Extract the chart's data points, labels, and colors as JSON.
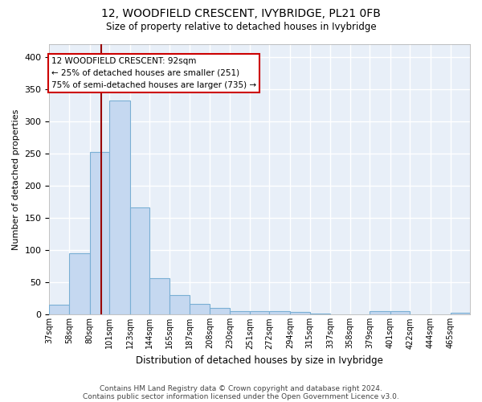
{
  "title": "12, WOODFIELD CRESCENT, IVYBRIDGE, PL21 0FB",
  "subtitle": "Size of property relative to detached houses in Ivybridge",
  "xlabel": "Distribution of detached houses by size in Ivybridge",
  "ylabel": "Number of detached properties",
  "bar_color": "#c5d8f0",
  "bar_edge_color": "#7aafd4",
  "background_color": "#e8eff8",
  "grid_color": "#ffffff",
  "annotation_text": [
    "12 WOODFIELD CRESCENT: 92sqm",
    "← 25% of detached houses are smaller (251)",
    "75% of semi-detached houses are larger (735) →"
  ],
  "property_line_x": 92,
  "categories": [
    "37sqm",
    "58sqm",
    "80sqm",
    "101sqm",
    "123sqm",
    "144sqm",
    "165sqm",
    "187sqm",
    "208sqm",
    "230sqm",
    "251sqm",
    "272sqm",
    "294sqm",
    "315sqm",
    "337sqm",
    "358sqm",
    "379sqm",
    "401sqm",
    "422sqm",
    "444sqm",
    "465sqm"
  ],
  "bin_edges": [
    37,
    58,
    80,
    101,
    123,
    144,
    165,
    187,
    208,
    230,
    251,
    272,
    294,
    315,
    337,
    358,
    379,
    401,
    422,
    444,
    465,
    486
  ],
  "values": [
    15,
    95,
    253,
    333,
    167,
    57,
    30,
    17,
    10,
    6,
    5,
    5,
    4,
    2,
    1,
    1,
    5,
    5,
    1,
    1,
    3
  ],
  "ylim": [
    0,
    420
  ],
  "yticks": [
    0,
    50,
    100,
    150,
    200,
    250,
    300,
    350,
    400
  ],
  "footer": [
    "Contains HM Land Registry data © Crown copyright and database right 2024.",
    "Contains public sector information licensed under the Open Government Licence v3.0."
  ]
}
